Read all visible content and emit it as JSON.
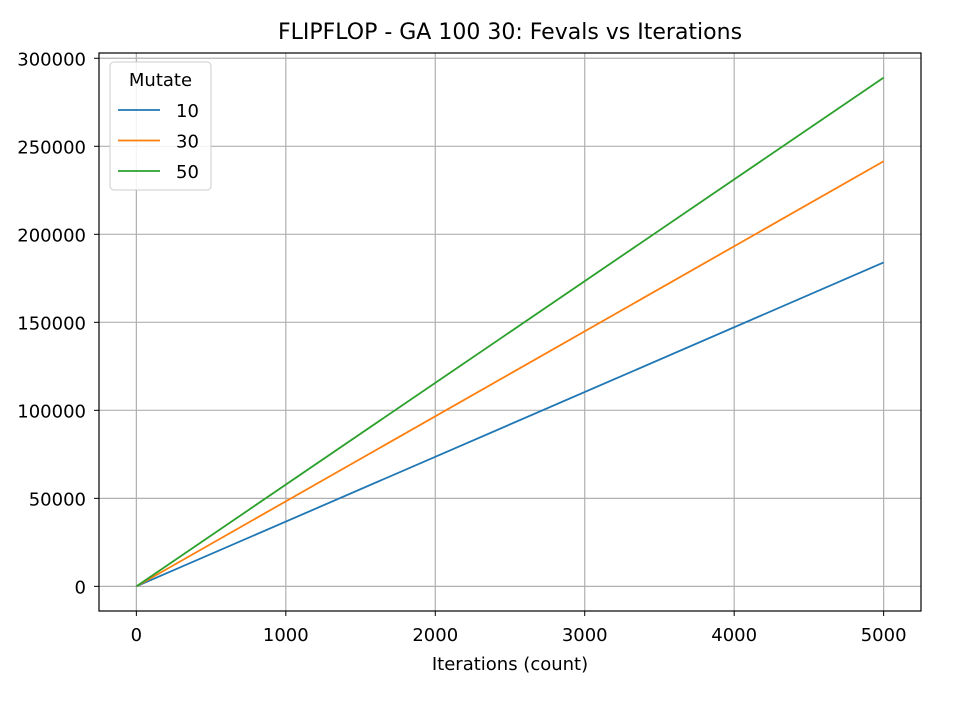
{
  "chart_data": {
    "type": "line",
    "title": "FLIPFLOP - GA 100 30: Fevals vs Iterations",
    "xlabel": "Iterations (count)",
    "ylabel": "",
    "xlim": [
      -250,
      5250
    ],
    "ylim": [
      -14000,
      303000
    ],
    "xticks": [
      0,
      1000,
      2000,
      3000,
      4000,
      5000
    ],
    "yticks": [
      0,
      50000,
      100000,
      150000,
      200000,
      250000,
      300000
    ],
    "grid": true,
    "legend": {
      "title": "Mutate",
      "position": "top-left"
    },
    "series": [
      {
        "name": "10",
        "color": "#1f77b4",
        "x": [
          0,
          5000
        ],
        "y": [
          0,
          184000
        ]
      },
      {
        "name": "30",
        "color": "#ff7f0e",
        "x": [
          0,
          5000
        ],
        "y": [
          0,
          241500
        ]
      },
      {
        "name": "50",
        "color": "#2ca02c",
        "x": [
          0,
          5000
        ],
        "y": [
          0,
          289000
        ]
      }
    ]
  }
}
